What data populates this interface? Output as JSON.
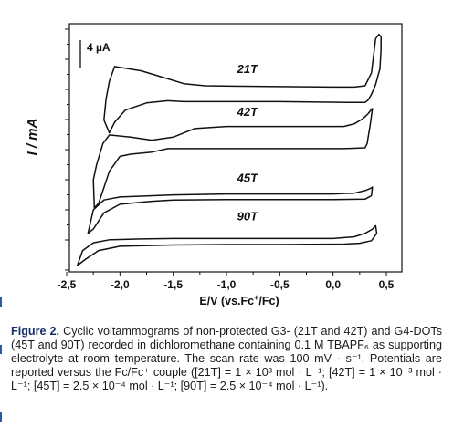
{
  "chart_data": {
    "type": "line",
    "xlabel_parts": {
      "main": "E/V (vs.Fc",
      "sup": "+",
      "end": "/Fc)"
    },
    "ylabel": "I / mA",
    "xlim": [
      -2.5,
      0.6
    ],
    "xticks": [
      "-2,5",
      "-2,0",
      "-1,5",
      "-1,0",
      "-0,5",
      "0,0",
      "0,5"
    ],
    "xtick_values": [
      -2.5,
      -2.0,
      -1.5,
      -1.0,
      -0.5,
      0.0,
      0.5
    ],
    "scale_bar_label": "4 µA",
    "grid": false,
    "series": [
      {
        "name": "21T",
        "baseline": 1.7,
        "points": [
          [
            -2.05,
            2.2
          ],
          [
            -1.8,
            2.1
          ],
          [
            -1.6,
            1.95
          ],
          [
            -1.4,
            1.8
          ],
          [
            -1.2,
            1.75
          ],
          [
            -0.5,
            1.73
          ],
          [
            0.0,
            1.72
          ],
          [
            0.2,
            1.72
          ],
          [
            0.3,
            1.75
          ],
          [
            0.36,
            2.05
          ],
          [
            0.38,
            2.45
          ],
          [
            0.4,
            2.85
          ],
          [
            0.43,
            2.95
          ],
          [
            0.45,
            2.9
          ],
          [
            0.45,
            2.6
          ],
          [
            0.44,
            2.15
          ],
          [
            0.4,
            1.78
          ],
          [
            0.36,
            1.55
          ],
          [
            0.33,
            1.42
          ],
          [
            0.3,
            1.36
          ],
          [
            0.2,
            1.36
          ],
          [
            -0.5,
            1.38
          ],
          [
            -1.4,
            1.38
          ],
          [
            -1.55,
            1.4
          ],
          [
            -1.75,
            1.35
          ],
          [
            -1.95,
            1.18
          ],
          [
            -2.05,
            0.9
          ],
          [
            -2.1,
            0.65
          ],
          [
            -2.15,
            0.95
          ],
          [
            -2.13,
            1.45
          ],
          [
            -2.1,
            1.85
          ],
          [
            -2.05,
            2.2
          ]
        ]
      },
      {
        "name": "42T",
        "baseline": 0.7,
        "points": [
          [
            -2.25,
            -0.45
          ],
          [
            -2.22,
            -0.1
          ],
          [
            -2.16,
            0.4
          ],
          [
            -2.1,
            0.6
          ],
          [
            -1.9,
            0.55
          ],
          [
            -1.7,
            0.48
          ],
          [
            -1.5,
            0.55
          ],
          [
            -1.3,
            0.75
          ],
          [
            -1.0,
            0.8
          ],
          [
            -0.5,
            0.8
          ],
          [
            0.0,
            0.8
          ],
          [
            0.1,
            0.8
          ],
          [
            0.2,
            0.86
          ],
          [
            0.28,
            0.98
          ],
          [
            0.33,
            1.1
          ],
          [
            0.36,
            1.2
          ],
          [
            0.37,
            1.22
          ],
          [
            0.35,
            0.86
          ],
          [
            0.32,
            0.4
          ],
          [
            0.3,
            0.3
          ],
          [
            0.1,
            0.28
          ],
          [
            -0.5,
            0.28
          ],
          [
            -1.4,
            0.28
          ],
          [
            -1.55,
            0.28
          ],
          [
            -1.7,
            0.2
          ],
          [
            -1.9,
            0.15
          ],
          [
            -2.0,
            0.1
          ],
          [
            -2.1,
            -0.25
          ],
          [
            -2.2,
            -1.0
          ],
          [
            -2.24,
            -1.1
          ],
          [
            -2.25,
            -0.45
          ]
        ]
      },
      {
        "name": "45T",
        "baseline": -0.7,
        "points": [
          [
            -2.3,
            -1.7
          ],
          [
            -2.25,
            -1.15
          ],
          [
            -2.15,
            -0.92
          ],
          [
            -2.0,
            -0.85
          ],
          [
            -1.8,
            -0.83
          ],
          [
            -1.5,
            -0.8
          ],
          [
            -1.0,
            -0.78
          ],
          [
            -0.5,
            -0.78
          ],
          [
            0.0,
            -0.78
          ],
          [
            0.2,
            -0.76
          ],
          [
            0.3,
            -0.7
          ],
          [
            0.35,
            -0.65
          ],
          [
            0.37,
            -0.62
          ],
          [
            0.36,
            -0.82
          ],
          [
            0.3,
            -0.9
          ],
          [
            0.0,
            -0.91
          ],
          [
            -0.5,
            -0.91
          ],
          [
            -1.0,
            -0.91
          ],
          [
            -1.5,
            -0.92
          ],
          [
            -1.7,
            -0.95
          ],
          [
            -2.0,
            -1.02
          ],
          [
            -2.15,
            -1.22
          ],
          [
            -2.25,
            -1.6
          ],
          [
            -2.3,
            -1.7
          ]
        ]
      },
      {
        "name": "90T",
        "baseline": -1.5,
        "points": [
          [
            -2.4,
            -2.45
          ],
          [
            -2.35,
            -2.1
          ],
          [
            -2.25,
            -1.92
          ],
          [
            -2.1,
            -1.85
          ],
          [
            -1.8,
            -1.83
          ],
          [
            -1.5,
            -1.82
          ],
          [
            -1.0,
            -1.82
          ],
          [
            -0.5,
            -1.82
          ],
          [
            0.0,
            -1.82
          ],
          [
            0.2,
            -1.78
          ],
          [
            0.3,
            -1.7
          ],
          [
            0.37,
            -1.6
          ],
          [
            0.4,
            -1.52
          ],
          [
            0.41,
            -1.7
          ],
          [
            0.36,
            -1.87
          ],
          [
            0.25,
            -1.93
          ],
          [
            0.1,
            -1.95
          ],
          [
            -0.5,
            -1.96
          ],
          [
            -1.0,
            -1.96
          ],
          [
            -1.5,
            -1.97
          ],
          [
            -2.0,
            -2.0
          ],
          [
            -2.2,
            -2.1
          ],
          [
            -2.32,
            -2.3
          ],
          [
            -2.4,
            -2.45
          ]
        ]
      }
    ]
  },
  "caption": {
    "lead": "Figure 2.",
    "text": "Cyclic voltammograms of non-protected G3- (21T and 42T) and G4-DOTs (45T and 90T) recorded in dichloromethane containing 0.1 M TBAPF₆ as supporting electrolyte at room temperature. The scan rate was 100 mV · s⁻¹. Potentials are reported versus the Fc/Fc⁺ couple ([21T] = 1 × 10³ mol · L⁻¹; [42T] = 1 × 10⁻³ mol · L⁻¹; [45T] = 2.5 × 10⁻⁴ mol · L⁻¹; [90T] = 2.5 × 10⁻⁴ mol · L⁻¹)."
  }
}
